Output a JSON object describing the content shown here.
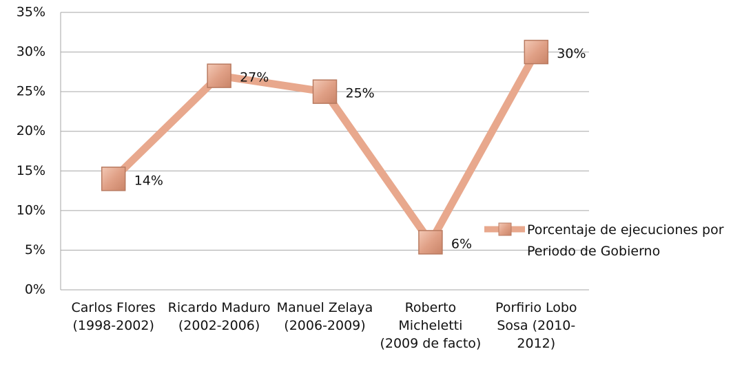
{
  "chart_data": {
    "type": "line",
    "categories": [
      "Carlos Flores (1998-2002)",
      "Ricardo Maduro (2002-2006)",
      "Manuel Zelaya (2006-2009)",
      "Roberto Micheletti (2009 de facto)",
      "Porfirio Lobo Sosa (2010-2012)"
    ],
    "series": [
      {
        "name": "Porcentaje de ejecuciones por Periodo de Gobierno",
        "color": "#e8a88d",
        "values": [
          14,
          27,
          25,
          6,
          30
        ],
        "value_labels": [
          "14%",
          "27%",
          "25%",
          "6%",
          "30%"
        ]
      }
    ],
    "ylim": [
      0,
      35
    ],
    "yticks": [
      {
        "value": 0,
        "label": "0%"
      },
      {
        "value": 5,
        "label": "5%"
      },
      {
        "value": 10,
        "label": "10%"
      },
      {
        "value": 15,
        "label": "15%"
      },
      {
        "value": 20,
        "label": "20%"
      },
      {
        "value": 25,
        "label": "25%"
      },
      {
        "value": 30,
        "label": "30%"
      },
      {
        "value": 35,
        "label": "35%"
      }
    ],
    "grid": true,
    "legend": "right"
  }
}
